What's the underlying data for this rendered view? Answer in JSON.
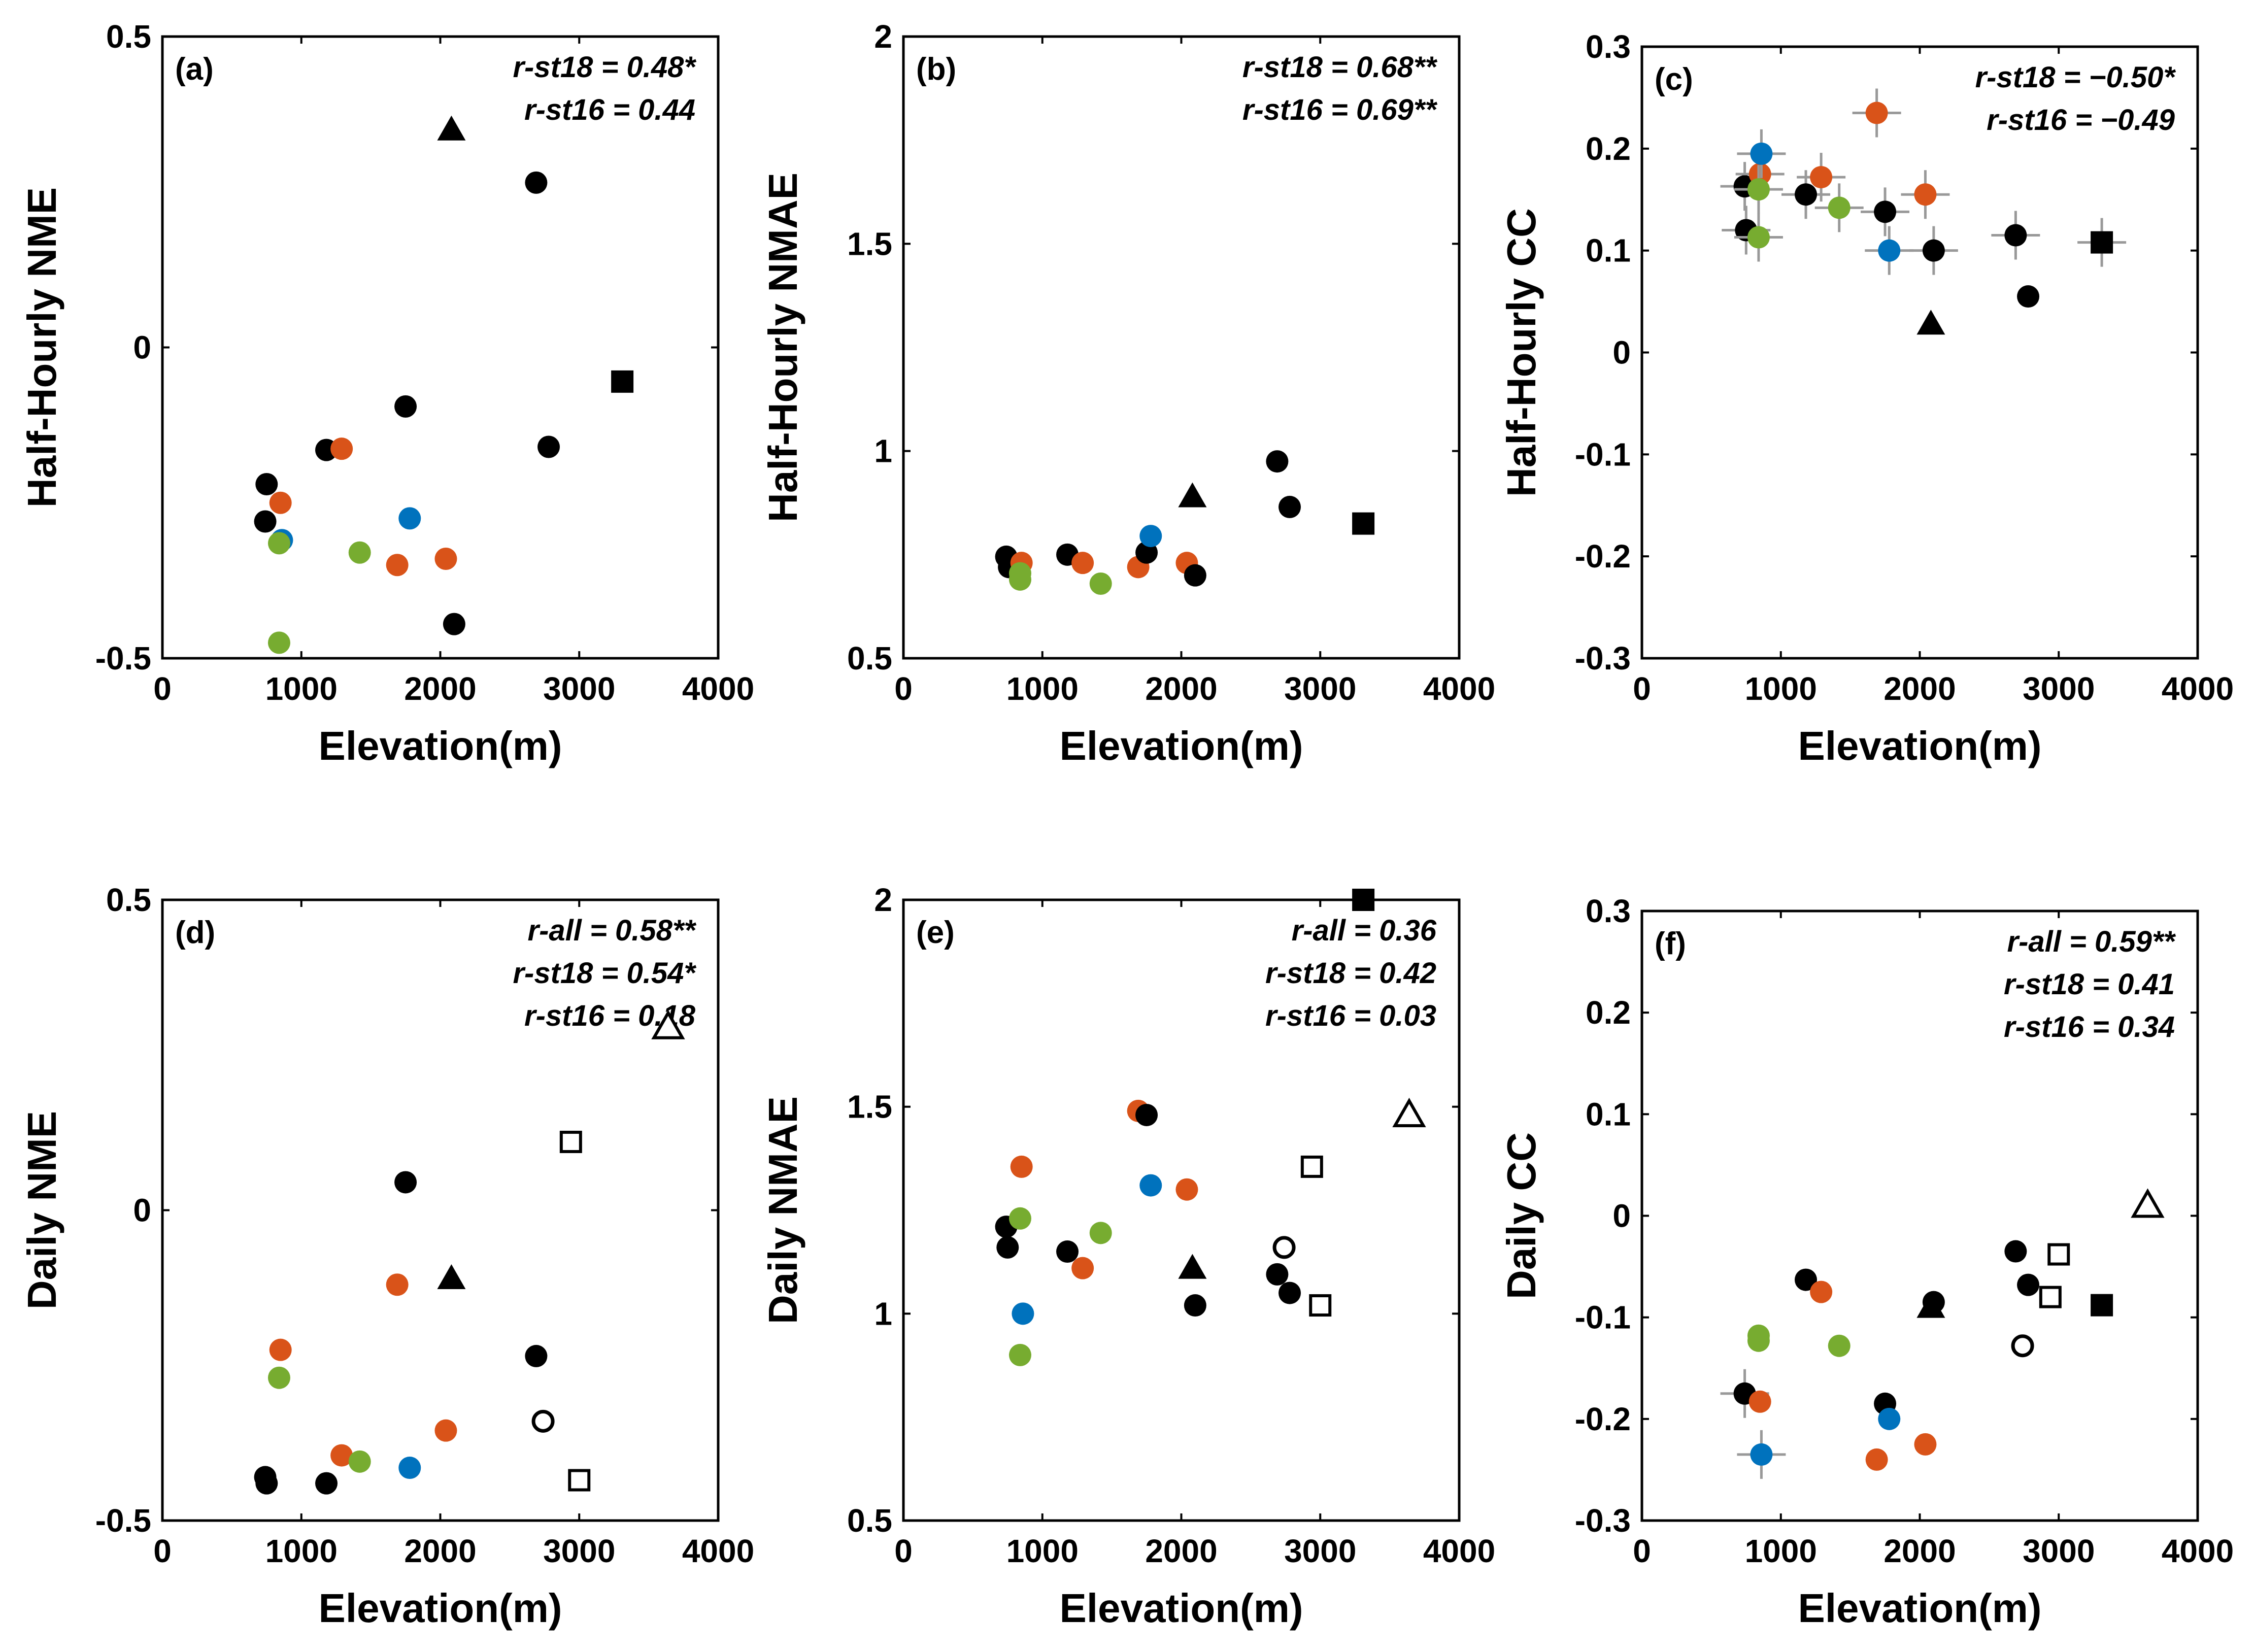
{
  "figure": {
    "title": ""
  },
  "colors": {
    "black": "#000000",
    "orange": "#d95319",
    "blue": "#0072bd",
    "green": "#77ac30",
    "errorbar": "#999999"
  },
  "chart_data": [
    {
      "id": "a",
      "type": "scatter",
      "panel_label": "(a)",
      "xlabel": "Elevation(m)",
      "ylabel": "Half-Hourly NME",
      "xlim": [
        0,
        4000
      ],
      "ylim": [
        -0.5,
        0.5
      ],
      "xticks": [
        0,
        1000,
        2000,
        3000,
        4000
      ],
      "yticks": [
        -0.5,
        0,
        0.5
      ],
      "xtick_labels": [
        "0",
        "1000",
        "2000",
        "3000",
        "4000"
      ],
      "ytick_labels": [
        "-0.5",
        "0",
        "0.5"
      ],
      "annotations": [
        "r-st18 = 0.48*",
        "r-st16 = 0.44"
      ],
      "points": [
        {
          "x": 740,
          "y": -0.28,
          "c": "black",
          "m": "circle"
        },
        {
          "x": 750,
          "y": -0.22,
          "c": "black",
          "m": "circle"
        },
        {
          "x": 850,
          "y": -0.25,
          "c": "orange",
          "m": "circle"
        },
        {
          "x": 860,
          "y": -0.31,
          "c": "blue",
          "m": "circle"
        },
        {
          "x": 840,
          "y": -0.315,
          "c": "green",
          "m": "circle"
        },
        {
          "x": 840,
          "y": -0.475,
          "c": "green",
          "m": "circle"
        },
        {
          "x": 1180,
          "y": -0.165,
          "c": "black",
          "m": "circle"
        },
        {
          "x": 1290,
          "y": -0.163,
          "c": "orange",
          "m": "circle"
        },
        {
          "x": 1420,
          "y": -0.33,
          "c": "green",
          "m": "circle"
        },
        {
          "x": 1690,
          "y": -0.35,
          "c": "orange",
          "m": "circle"
        },
        {
          "x": 1750,
          "y": -0.095,
          "c": "black",
          "m": "circle"
        },
        {
          "x": 1780,
          "y": -0.275,
          "c": "blue",
          "m": "circle"
        },
        {
          "x": 2040,
          "y": -0.34,
          "c": "orange",
          "m": "circle"
        },
        {
          "x": 2080,
          "y": 0.35,
          "c": "black",
          "m": "triangle"
        },
        {
          "x": 2100,
          "y": -0.445,
          "c": "black",
          "m": "circle"
        },
        {
          "x": 2690,
          "y": 0.265,
          "c": "black",
          "m": "circle"
        },
        {
          "x": 2780,
          "y": -0.16,
          "c": "black",
          "m": "circle"
        },
        {
          "x": 3310,
          "y": -0.055,
          "c": "black",
          "m": "square"
        }
      ]
    },
    {
      "id": "b",
      "type": "scatter",
      "panel_label": "(b)",
      "xlabel": "Elevation(m)",
      "ylabel": "Half-Hourly NMAE",
      "xlim": [
        0,
        4000
      ],
      "ylim": [
        0.5,
        2
      ],
      "xticks": [
        0,
        1000,
        2000,
        3000,
        4000
      ],
      "yticks": [
        0.5,
        1,
        1.5,
        2
      ],
      "xtick_labels": [
        "0",
        "1000",
        "2000",
        "3000",
        "4000"
      ],
      "ytick_labels": [
        "0.5",
        "1",
        "1.5",
        "2"
      ],
      "annotations": [
        "r-st18 = 0.68**",
        "r-st16 = 0.69**"
      ],
      "points": [
        {
          "x": 740,
          "y": 0.745,
          "c": "black",
          "m": "circle"
        },
        {
          "x": 760,
          "y": 0.72,
          "c": "black",
          "m": "circle"
        },
        {
          "x": 850,
          "y": 0.73,
          "c": "orange",
          "m": "circle"
        },
        {
          "x": 840,
          "y": 0.705,
          "c": "green",
          "m": "circle"
        },
        {
          "x": 840,
          "y": 0.69,
          "c": "green",
          "m": "circle"
        },
        {
          "x": 1180,
          "y": 0.75,
          "c": "black",
          "m": "circle"
        },
        {
          "x": 1290,
          "y": 0.73,
          "c": "orange",
          "m": "circle"
        },
        {
          "x": 1420,
          "y": 0.68,
          "c": "green",
          "m": "circle"
        },
        {
          "x": 1690,
          "y": 0.72,
          "c": "orange",
          "m": "circle"
        },
        {
          "x": 1750,
          "y": 0.755,
          "c": "black",
          "m": "circle"
        },
        {
          "x": 1780,
          "y": 0.795,
          "c": "blue",
          "m": "circle"
        },
        {
          "x": 2040,
          "y": 0.73,
          "c": "orange",
          "m": "circle"
        },
        {
          "x": 2080,
          "y": 0.89,
          "c": "black",
          "m": "triangle"
        },
        {
          "x": 2100,
          "y": 0.7,
          "c": "black",
          "m": "circle"
        },
        {
          "x": 2690,
          "y": 0.975,
          "c": "black",
          "m": "circle"
        },
        {
          "x": 2780,
          "y": 0.865,
          "c": "black",
          "m": "circle"
        },
        {
          "x": 3310,
          "y": 0.825,
          "c": "black",
          "m": "square"
        }
      ]
    },
    {
      "id": "c",
      "type": "scatter",
      "panel_label": "(c)",
      "xlabel": "Elevation(m)",
      "ylabel": "Half-Hourly CC",
      "xlim": [
        0,
        4000
      ],
      "ylim": [
        -0.3,
        0.3
      ],
      "xticks": [
        0,
        1000,
        2000,
        3000,
        4000
      ],
      "yticks": [
        -0.3,
        -0.2,
        -0.1,
        0,
        0.1,
        0.2,
        0.3
      ],
      "xtick_labels": [
        "0",
        "1000",
        "2000",
        "3000",
        "4000"
      ],
      "ytick_labels": [
        "-0.3",
        "-0.2",
        "-0.1",
        "0",
        "0.1",
        "0.2",
        "0.3"
      ],
      "annotations": [
        "r-st18 = −0.50*",
        "r-st16 = −0.49"
      ],
      "points": [
        {
          "x": 740,
          "y": 0.163,
          "c": "black",
          "m": "circle",
          "err": true
        },
        {
          "x": 750,
          "y": 0.12,
          "c": "black",
          "m": "circle",
          "err": true
        },
        {
          "x": 850,
          "y": 0.175,
          "c": "orange",
          "m": "circle",
          "err": true
        },
        {
          "x": 860,
          "y": 0.195,
          "c": "blue",
          "m": "circle",
          "err": true
        },
        {
          "x": 840,
          "y": 0.16,
          "c": "green",
          "m": "circle",
          "err": true
        },
        {
          "x": 840,
          "y": 0.113,
          "c": "green",
          "m": "circle",
          "err": true
        },
        {
          "x": 1180,
          "y": 0.155,
          "c": "black",
          "m": "circle",
          "err": true
        },
        {
          "x": 1290,
          "y": 0.172,
          "c": "orange",
          "m": "circle",
          "err": true
        },
        {
          "x": 1420,
          "y": 0.142,
          "c": "green",
          "m": "circle",
          "err": true
        },
        {
          "x": 1690,
          "y": 0.235,
          "c": "orange",
          "m": "circle",
          "err": true
        },
        {
          "x": 1750,
          "y": 0.138,
          "c": "black",
          "m": "circle",
          "err": true
        },
        {
          "x": 1780,
          "y": 0.1,
          "c": "blue",
          "m": "circle",
          "err": true
        },
        {
          "x": 2040,
          "y": 0.155,
          "c": "orange",
          "m": "circle",
          "err": true
        },
        {
          "x": 2080,
          "y": 0.028,
          "c": "black",
          "m": "triangle"
        },
        {
          "x": 2100,
          "y": 0.1,
          "c": "black",
          "m": "circle",
          "err": true
        },
        {
          "x": 2690,
          "y": 0.115,
          "c": "black",
          "m": "circle",
          "err": true
        },
        {
          "x": 2780,
          "y": 0.055,
          "c": "black",
          "m": "circle"
        },
        {
          "x": 3310,
          "y": 0.108,
          "c": "black",
          "m": "square",
          "err": true
        }
      ]
    },
    {
      "id": "d",
      "type": "scatter",
      "panel_label": "(d)",
      "xlabel": "Elevation(m)",
      "ylabel": "Daily NME",
      "xlim": [
        0,
        4000
      ],
      "ylim": [
        -0.5,
        0.5
      ],
      "xticks": [
        0,
        1000,
        2000,
        3000,
        4000
      ],
      "yticks": [
        -0.5,
        0,
        0.5
      ],
      "xtick_labels": [
        "0",
        "1000",
        "2000",
        "3000",
        "4000"
      ],
      "ytick_labels": [
        "-0.5",
        "0",
        "0.5"
      ],
      "annotations": [
        "r-all = 0.58**",
        "r-st18 = 0.54*",
        "r-st16 = 0.18"
      ],
      "points": [
        {
          "x": 740,
          "y": -0.43,
          "c": "black",
          "m": "circle"
        },
        {
          "x": 750,
          "y": -0.44,
          "c": "black",
          "m": "circle"
        },
        {
          "x": 850,
          "y": -0.225,
          "c": "orange",
          "m": "circle"
        },
        {
          "x": 840,
          "y": -0.27,
          "c": "green",
          "m": "circle"
        },
        {
          "x": 1180,
          "y": -0.44,
          "c": "black",
          "m": "circle"
        },
        {
          "x": 1290,
          "y": -0.395,
          "c": "orange",
          "m": "circle"
        },
        {
          "x": 1420,
          "y": -0.405,
          "c": "green",
          "m": "circle"
        },
        {
          "x": 1690,
          "y": -0.12,
          "c": "orange",
          "m": "circle"
        },
        {
          "x": 1750,
          "y": 0.045,
          "c": "black",
          "m": "circle"
        },
        {
          "x": 1780,
          "y": -0.415,
          "c": "blue",
          "m": "circle"
        },
        {
          "x": 2040,
          "y": -0.355,
          "c": "orange",
          "m": "circle"
        },
        {
          "x": 2080,
          "y": -0.11,
          "c": "black",
          "m": "triangle"
        },
        {
          "x": 2690,
          "y": -0.235,
          "c": "black",
          "m": "circle"
        },
        {
          "x": 2740,
          "y": -0.34,
          "c": "black",
          "m": "circle-open"
        },
        {
          "x": 2940,
          "y": 0.11,
          "c": "black",
          "m": "square-open"
        },
        {
          "x": 3000,
          "y": -0.435,
          "c": "black",
          "m": "square-open"
        },
        {
          "x": 3640,
          "y": 0.295,
          "c": "black",
          "m": "triangle-open"
        }
      ]
    },
    {
      "id": "e",
      "type": "scatter",
      "panel_label": "(e)",
      "xlabel": "Elevation(m)",
      "ylabel": "Daily NMAE",
      "xlim": [
        0,
        4000
      ],
      "ylim": [
        0.5,
        2
      ],
      "xticks": [
        0,
        1000,
        2000,
        3000,
        4000
      ],
      "yticks": [
        0.5,
        1,
        1.5,
        2
      ],
      "xtick_labels": [
        "0",
        "1000",
        "2000",
        "3000",
        "4000"
      ],
      "ytick_labels": [
        "0.5",
        "1",
        "1.5",
        "2"
      ],
      "annotations": [
        "r-all = 0.36",
        "r-st18 = 0.42",
        "r-st16 = 0.03"
      ],
      "points": [
        {
          "x": 740,
          "y": 1.21,
          "c": "black",
          "m": "circle"
        },
        {
          "x": 750,
          "y": 1.16,
          "c": "black",
          "m": "circle"
        },
        {
          "x": 850,
          "y": 1.355,
          "c": "orange",
          "m": "circle"
        },
        {
          "x": 860,
          "y": 1.0,
          "c": "blue",
          "m": "circle"
        },
        {
          "x": 840,
          "y": 1.23,
          "c": "green",
          "m": "circle"
        },
        {
          "x": 840,
          "y": 0.9,
          "c": "green",
          "m": "circle"
        },
        {
          "x": 1180,
          "y": 1.15,
          "c": "black",
          "m": "circle"
        },
        {
          "x": 1290,
          "y": 1.11,
          "c": "orange",
          "m": "circle"
        },
        {
          "x": 1420,
          "y": 1.195,
          "c": "green",
          "m": "circle"
        },
        {
          "x": 1690,
          "y": 1.49,
          "c": "orange",
          "m": "circle"
        },
        {
          "x": 1750,
          "y": 1.48,
          "c": "black",
          "m": "circle"
        },
        {
          "x": 1780,
          "y": 1.31,
          "c": "blue",
          "m": "circle"
        },
        {
          "x": 2040,
          "y": 1.3,
          "c": "orange",
          "m": "circle"
        },
        {
          "x": 2080,
          "y": 1.11,
          "c": "black",
          "m": "triangle"
        },
        {
          "x": 2100,
          "y": 1.02,
          "c": "black",
          "m": "circle"
        },
        {
          "x": 2690,
          "y": 1.095,
          "c": "black",
          "m": "circle"
        },
        {
          "x": 2740,
          "y": 1.16,
          "c": "black",
          "m": "circle-open"
        },
        {
          "x": 2780,
          "y": 1.05,
          "c": "black",
          "m": "circle"
        },
        {
          "x": 2940,
          "y": 1.355,
          "c": "black",
          "m": "square-open"
        },
        {
          "x": 3000,
          "y": 1.02,
          "c": "black",
          "m": "square-open"
        },
        {
          "x": 3310,
          "y": 2.0,
          "c": "black",
          "m": "square"
        },
        {
          "x": 3640,
          "y": 1.48,
          "c": "black",
          "m": "triangle-open"
        }
      ]
    },
    {
      "id": "f",
      "type": "scatter",
      "panel_label": "(f)",
      "xlabel": "Elevation(m)",
      "ylabel": "Daily CC",
      "xlim": [
        0,
        4000
      ],
      "ylim": [
        -0.3,
        0.3
      ],
      "xticks": [
        0,
        1000,
        2000,
        3000,
        4000
      ],
      "yticks": [
        -0.3,
        -0.2,
        -0.1,
        0,
        0.1,
        0.2,
        0.3
      ],
      "xtick_labels": [
        "0",
        "1000",
        "2000",
        "3000",
        "4000"
      ],
      "ytick_labels": [
        "-0.3",
        "-0.2",
        "-0.1",
        "0",
        "0.1",
        "0.2",
        "0.3"
      ],
      "annotations": [
        "r-all = 0.59**",
        "r-st18 = 0.41",
        "r-st16 = 0.34"
      ],
      "points": [
        {
          "x": 740,
          "y": -0.175,
          "c": "black",
          "m": "circle",
          "err": true
        },
        {
          "x": 850,
          "y": -0.183,
          "c": "orange",
          "m": "circle"
        },
        {
          "x": 860,
          "y": -0.235,
          "c": "blue",
          "m": "circle",
          "err": true
        },
        {
          "x": 840,
          "y": -0.118,
          "c": "green",
          "m": "circle"
        },
        {
          "x": 840,
          "y": -0.123,
          "c": "green",
          "m": "circle"
        },
        {
          "x": 1180,
          "y": -0.063,
          "c": "black",
          "m": "circle"
        },
        {
          "x": 1290,
          "y": -0.075,
          "c": "orange",
          "m": "circle"
        },
        {
          "x": 1420,
          "y": -0.128,
          "c": "green",
          "m": "circle"
        },
        {
          "x": 1690,
          "y": -0.24,
          "c": "orange",
          "m": "circle"
        },
        {
          "x": 1750,
          "y": -0.185,
          "c": "black",
          "m": "circle"
        },
        {
          "x": 1780,
          "y": -0.2,
          "c": "blue",
          "m": "circle"
        },
        {
          "x": 2040,
          "y": -0.225,
          "c": "orange",
          "m": "circle"
        },
        {
          "x": 2080,
          "y": -0.09,
          "c": "black",
          "m": "triangle"
        },
        {
          "x": 2100,
          "y": -0.085,
          "c": "black",
          "m": "circle"
        },
        {
          "x": 2690,
          "y": -0.035,
          "c": "black",
          "m": "circle"
        },
        {
          "x": 2740,
          "y": -0.128,
          "c": "black",
          "m": "circle-open"
        },
        {
          "x": 2780,
          "y": -0.068,
          "c": "black",
          "m": "circle"
        },
        {
          "x": 2940,
          "y": -0.08,
          "c": "black",
          "m": "square-open"
        },
        {
          "x": 3000,
          "y": -0.038,
          "c": "black",
          "m": "square-open"
        },
        {
          "x": 3310,
          "y": -0.088,
          "c": "black",
          "m": "square"
        },
        {
          "x": 3640,
          "y": 0.01,
          "c": "black",
          "m": "triangle-open"
        }
      ]
    }
  ]
}
